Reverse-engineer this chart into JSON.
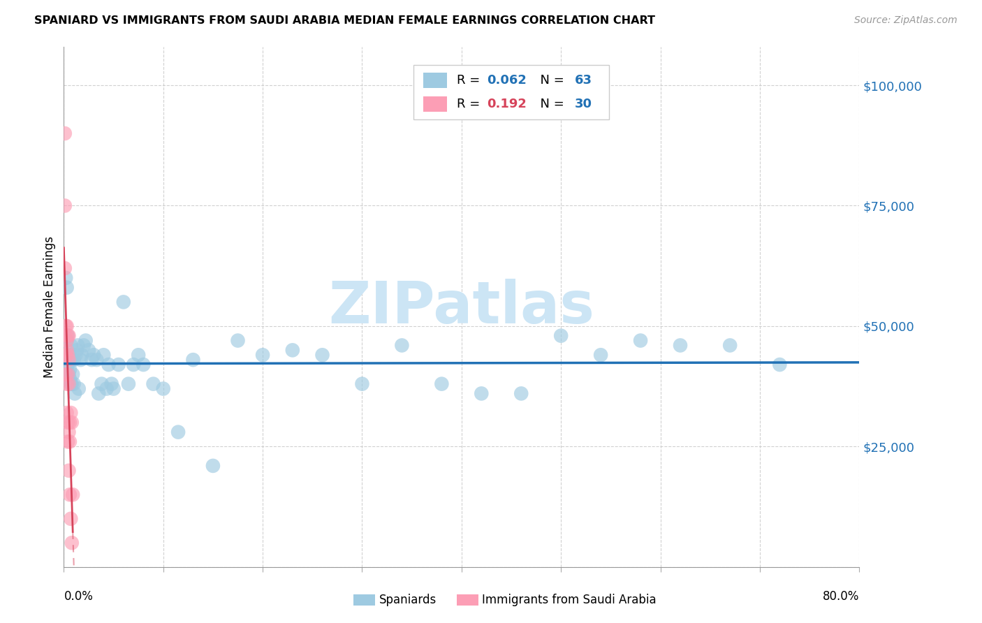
{
  "title": "SPANIARD VS IMMIGRANTS FROM SAUDI ARABIA MEDIAN FEMALE EARNINGS CORRELATION CHART",
  "source": "Source: ZipAtlas.com",
  "ylabel": "Median Female Earnings",
  "y_ticks": [
    0,
    25000,
    50000,
    75000,
    100000
  ],
  "y_tick_labels": [
    "",
    "$25,000",
    "$50,000",
    "$75,000",
    "$100,000"
  ],
  "xlim": [
    0.0,
    0.8
  ],
  "ylim": [
    0,
    108000
  ],
  "color_blue": "#9ecae1",
  "color_pink": "#fc9eb5",
  "line_blue": "#2171b5",
  "line_pink": "#d6435a",
  "watermark_color": "#cce5f5",
  "spaniards_x": [
    0.002,
    0.003,
    0.003,
    0.004,
    0.004,
    0.005,
    0.005,
    0.006,
    0.006,
    0.006,
    0.007,
    0.007,
    0.008,
    0.008,
    0.009,
    0.01,
    0.01,
    0.011,
    0.012,
    0.013,
    0.014,
    0.015,
    0.017,
    0.018,
    0.02,
    0.022,
    0.025,
    0.028,
    0.03,
    0.033,
    0.035,
    0.038,
    0.04,
    0.043,
    0.045,
    0.048,
    0.05,
    0.055,
    0.06,
    0.065,
    0.07,
    0.075,
    0.08,
    0.09,
    0.1,
    0.115,
    0.13,
    0.15,
    0.175,
    0.2,
    0.23,
    0.26,
    0.3,
    0.34,
    0.38,
    0.42,
    0.46,
    0.5,
    0.54,
    0.58,
    0.62,
    0.67,
    0.72
  ],
  "spaniards_y": [
    60000,
    58000,
    47000,
    48000,
    42000,
    44000,
    40000,
    44000,
    41000,
    39000,
    46000,
    38000,
    43000,
    38000,
    40000,
    43000,
    38000,
    36000,
    44000,
    45000,
    46000,
    37000,
    43000,
    44000,
    46000,
    47000,
    45000,
    43000,
    44000,
    43000,
    36000,
    38000,
    44000,
    37000,
    42000,
    38000,
    37000,
    42000,
    55000,
    38000,
    42000,
    44000,
    42000,
    38000,
    37000,
    28000,
    43000,
    21000,
    47000,
    44000,
    45000,
    44000,
    38000,
    46000,
    38000,
    36000,
    36000,
    48000,
    44000,
    47000,
    46000,
    46000,
    42000
  ],
  "saudi_x": [
    0.001,
    0.001,
    0.001,
    0.002,
    0.002,
    0.002,
    0.002,
    0.003,
    0.003,
    0.003,
    0.003,
    0.003,
    0.004,
    0.004,
    0.004,
    0.004,
    0.004,
    0.005,
    0.005,
    0.005,
    0.005,
    0.005,
    0.006,
    0.006,
    0.006,
    0.007,
    0.007,
    0.008,
    0.008,
    0.009
  ],
  "saudi_y": [
    90000,
    75000,
    62000,
    50000,
    48000,
    44000,
    40000,
    50000,
    47000,
    45000,
    38000,
    32000,
    48000,
    44000,
    40000,
    30000,
    26000,
    48000,
    43000,
    38000,
    28000,
    20000,
    30000,
    26000,
    15000,
    32000,
    10000,
    30000,
    5000,
    15000
  ]
}
